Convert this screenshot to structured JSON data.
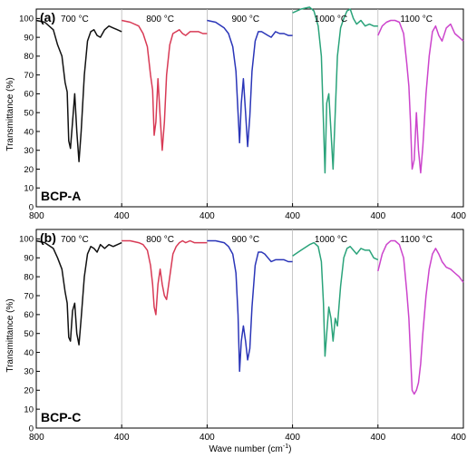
{
  "chart_data": {
    "type": "line",
    "xlabel_text": "Wave number (cm",
    "xlabel_sup": "-1",
    "xlabel_close": ")",
    "ylabel": "Transmittance (%)",
    "yticks": [
      "0",
      "10",
      "20",
      "30",
      "40",
      "50",
      "60",
      "70",
      "80",
      "90",
      "100"
    ],
    "ylim": [
      0,
      105
    ],
    "segment_xlim": [
      800,
      400
    ],
    "colors": {
      "700": "#111111",
      "800": "#d83a55",
      "900": "#2a35b8",
      "1000": "#2aa37a",
      "1100": "#cc44cc"
    },
    "panels": [
      {
        "panel_label": "(a)",
        "sample": "BCP-A",
        "xticks": [
          "800",
          "400",
          "400",
          "400",
          "400",
          "400"
        ],
        "segments": [
          {
            "temp": "700",
            "label": "700 °C",
            "x": [
              800,
              760,
              720,
              700,
              680,
              665,
              655,
              648,
              640,
              630,
              620,
              610,
              600,
              590,
              575,
              560,
              545,
              530,
              515,
              500,
              480,
              460,
              440,
              420,
              400
            ],
            "y": [
              99,
              98,
              94,
              86,
              80,
              66,
              61,
              35,
              31,
              45,
              60,
              40,
              24,
              40,
              70,
              88,
              93,
              94,
              91,
              90,
              94,
              96,
              95,
              94,
              93
            ]
          },
          {
            "temp": "800",
            "label": "800 °C",
            "x": [
              800,
              760,
              720,
              700,
              680,
              665,
              655,
              648,
              640,
              630,
              620,
              610,
              600,
              590,
              575,
              560,
              545,
              530,
              515,
              500,
              480,
              460,
              440,
              420,
              400
            ],
            "y": [
              99,
              98,
              96,
              92,
              85,
              70,
              62,
              38,
              45,
              68,
              48,
              30,
              45,
              70,
              86,
              92,
              93,
              94,
              92,
              91,
              93,
              93,
              93,
              92,
              92
            ]
          },
          {
            "temp": "900",
            "label": "900 °C",
            "x": [
              800,
              760,
              720,
              700,
              680,
              665,
              655,
              648,
              640,
              630,
              620,
              610,
              600,
              590,
              575,
              560,
              545,
              530,
              515,
              500,
              480,
              460,
              440,
              420,
              400
            ],
            "y": [
              99,
              98,
              95,
              92,
              85,
              72,
              50,
              34,
              55,
              68,
              50,
              32,
              48,
              72,
              88,
              93,
              93,
              92,
              91,
              90,
              93,
              92,
              92,
              91,
              91
            ]
          },
          {
            "temp": "1000",
            "label": "1000 °C",
            "x": [
              800,
              760,
              720,
              700,
              680,
              665,
              655,
              648,
              640,
              630,
              620,
              610,
              600,
              590,
              575,
              560,
              545,
              530,
              515,
              500,
              480,
              460,
              440,
              420,
              400
            ],
            "y": [
              103,
              105,
              106,
              104,
              96,
              80,
              45,
              18,
              55,
              60,
              40,
              20,
              50,
              80,
              95,
              100,
              104,
              105,
              100,
              97,
              99,
              96,
              97,
              96,
              96
            ]
          },
          {
            "temp": "1100",
            "label": "1100 °C",
            "x": [
              800,
              780,
              760,
              740,
              720,
              700,
              680,
              665,
              655,
              648,
              640,
              630,
              620,
              610,
              600,
              590,
              575,
              560,
              545,
              530,
              515,
              500,
              480,
              460,
              440,
              420,
              400
            ],
            "y": [
              91,
              96,
              98,
              99,
              99,
              98,
              92,
              76,
              64,
              46,
              20,
              25,
              50,
              30,
              18,
              32,
              60,
              80,
              93,
              96,
              91,
              88,
              95,
              97,
              92,
              90,
              88
            ]
          }
        ]
      },
      {
        "panel_label": "(b)",
        "sample": "BCP-C",
        "xticks": [
          "800",
          "400",
          "400",
          "400",
          "400",
          "400"
        ],
        "segments": [
          {
            "temp": "700",
            "label": "700 °C",
            "x": [
              800,
              760,
              720,
              700,
              680,
              665,
              655,
              648,
              640,
              630,
              620,
              610,
              600,
              590,
              575,
              560,
              545,
              530,
              515,
              500,
              480,
              460,
              440,
              420,
              400
            ],
            "y": [
              99,
              98,
              95,
              90,
              84,
              72,
              66,
              48,
              46,
              62,
              66,
              50,
              44,
              58,
              80,
              92,
              96,
              95,
              93,
              97,
              95,
              97,
              96,
              97,
              98
            ]
          },
          {
            "temp": "800",
            "label": "800 °C",
            "x": [
              800,
              760,
              720,
              700,
              680,
              665,
              655,
              648,
              640,
              630,
              620,
              610,
              600,
              590,
              575,
              560,
              545,
              530,
              515,
              500,
              480,
              460,
              440,
              420,
              400
            ],
            "y": [
              99,
              99,
              98,
              97,
              94,
              86,
              76,
              64,
              60,
              76,
              84,
              76,
              70,
              68,
              80,
              92,
              96,
              98,
              99,
              98,
              99,
              98,
              98,
              98,
              98
            ]
          },
          {
            "temp": "900",
            "label": "900 °C",
            "x": [
              800,
              760,
              720,
              700,
              680,
              665,
              655,
              648,
              640,
              630,
              620,
              610,
              600,
              590,
              575,
              560,
              545,
              530,
              515,
              500,
              480,
              460,
              440,
              420,
              400
            ],
            "y": [
              99,
              99,
              98,
              96,
              92,
              82,
              60,
              30,
              46,
              54,
              46,
              36,
              42,
              64,
              86,
              93,
              93,
              92,
              90,
              88,
              89,
              89,
              89,
              88,
              88
            ]
          },
          {
            "temp": "1000",
            "label": "1000 °C",
            "x": [
              800,
              760,
              720,
              700,
              680,
              665,
              655,
              648,
              640,
              630,
              620,
              610,
              600,
              590,
              575,
              560,
              545,
              530,
              515,
              500,
              480,
              460,
              440,
              420,
              400
            ],
            "y": [
              91,
              94,
              97,
              98,
              96,
              88,
              66,
              38,
              50,
              64,
              58,
              46,
              58,
              54,
              75,
              90,
              95,
              96,
              94,
              92,
              95,
              94,
              94,
              90,
              89
            ]
          },
          {
            "temp": "1100",
            "label": "1100 °C",
            "x": [
              800,
              780,
              760,
              740,
              720,
              700,
              680,
              665,
              655,
              648,
              640,
              630,
              620,
              610,
              600,
              590,
              575,
              560,
              545,
              530,
              515,
              500,
              480,
              460,
              440,
              420,
              400
            ],
            "y": [
              83,
              92,
              97,
              99,
              99,
              97,
              90,
              72,
              58,
              40,
              20,
              18,
              20,
              24,
              34,
              50,
              70,
              84,
              92,
              95,
              92,
              88,
              85,
              84,
              82,
              80,
              77
            ]
          }
        ]
      }
    ]
  }
}
